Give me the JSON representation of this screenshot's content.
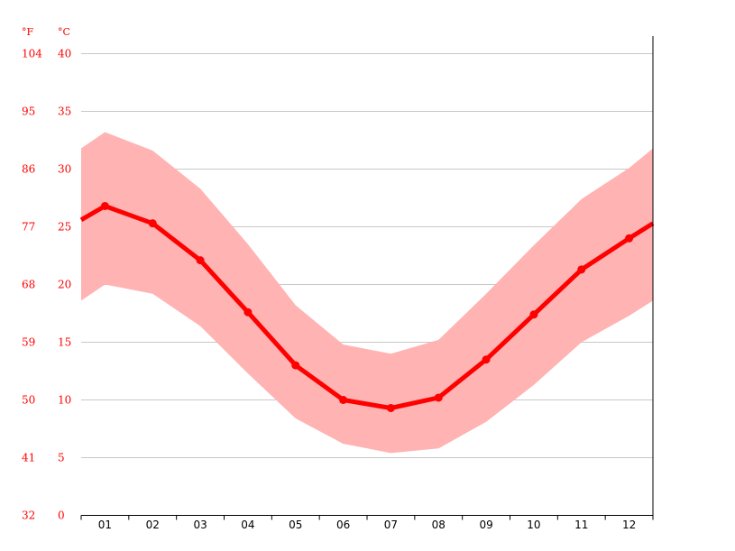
{
  "chart_data": {
    "type": "line",
    "title": "",
    "xlabel": "",
    "ylabel": "",
    "units": {
      "fahrenheit": "°F",
      "celsius": "°C"
    },
    "categories": [
      "01",
      "02",
      "03",
      "04",
      "05",
      "06",
      "07",
      "08",
      "09",
      "10",
      "11",
      "12"
    ],
    "ylim_celsius": [
      0,
      40
    ],
    "y_ticks_celsius": [
      "0",
      "5",
      "10",
      "15",
      "20",
      "25",
      "30",
      "35",
      "40"
    ],
    "y_ticks_fahrenheit": [
      "32",
      "41",
      "50",
      "59",
      "68",
      "77",
      "86",
      "95",
      "104"
    ],
    "grid": true,
    "series": [
      {
        "role": "mean",
        "values": [
          26.8,
          25.3,
          22.1,
          17.6,
          13.0,
          10.0,
          9.3,
          10.2,
          13.5,
          17.4,
          21.3,
          24.0
        ]
      },
      {
        "role": "max",
        "values": [
          33.2,
          31.6,
          28.3,
          23.5,
          18.2,
          14.8,
          14.0,
          15.2,
          19.2,
          23.4,
          27.4,
          30.1
        ]
      },
      {
        "role": "min",
        "values": [
          20.0,
          19.2,
          16.4,
          12.3,
          8.4,
          6.2,
          5.4,
          5.8,
          8.1,
          11.3,
          15.0,
          17.3
        ]
      }
    ],
    "edge_values": {
      "mean": [
        25.6,
        25.3
      ],
      "max": [
        31.8,
        31.8
      ],
      "min": [
        18.6,
        18.6
      ]
    },
    "colors": {
      "line": "#ff0000",
      "band": "#ffb3b3",
      "grid": "#c8c8c8",
      "axis": "#000000"
    }
  }
}
